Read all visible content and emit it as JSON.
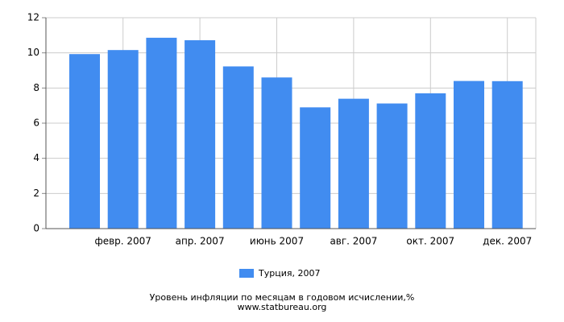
{
  "chart_data": {
    "type": "bar",
    "title": "Уровень инфляции по месяцам в годовом исчислении,%",
    "source": "www.statbureau.org",
    "categories": [
      null,
      "февр. 2007",
      null,
      "апр. 2007",
      null,
      "июнь 2007",
      null,
      "авг. 2007",
      null,
      "окт. 2007",
      null,
      "дек. 2007"
    ],
    "series": [
      {
        "name": "Турция, 2007",
        "color": "#418cf0",
        "values": [
          9.93,
          10.16,
          10.86,
          10.72,
          9.23,
          8.6,
          6.9,
          7.39,
          7.12,
          7.7,
          8.4,
          8.39
        ]
      }
    ],
    "ylim": [
      0,
      12
    ],
    "yticks": [
      0,
      2,
      4,
      6,
      8,
      10,
      12
    ],
    "grid": true
  }
}
